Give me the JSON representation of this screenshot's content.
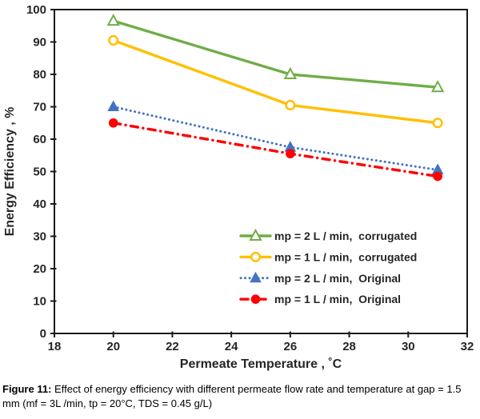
{
  "figure": {
    "caption_label": "Figure 11:",
    "caption_text": " Effect of energy efficiency with different permeate flow rate and temperature at gap = 1.5 mm (mf = 3L /min, tp = 20°C, TDS = 0.45 g/L)"
  },
  "chart_data": {
    "type": "line",
    "title": "",
    "xlabel": "Permeate Temperature , ˚C",
    "ylabel": "Energy Efficiency , %",
    "xlim": [
      18,
      32
    ],
    "ylim": [
      0,
      100
    ],
    "xticks": [
      18,
      20,
      22,
      24,
      26,
      28,
      30,
      32
    ],
    "yticks": [
      0,
      10,
      20,
      30,
      40,
      50,
      60,
      70,
      80,
      90,
      100
    ],
    "grid": false,
    "legend_position": "inside lower right",
    "x": [
      20,
      26,
      31
    ],
    "series": [
      {
        "name": "mp = 2 L / min,  corrugated",
        "values": [
          96.5,
          80,
          76
        ],
        "color": "#70AD47",
        "line_style": "solid",
        "marker": "triangle-open"
      },
      {
        "name": "mp = 1 L / min,  corrugated",
        "values": [
          90.5,
          70.5,
          65
        ],
        "color": "#FFC000",
        "line_style": "solid",
        "marker": "circle-open"
      },
      {
        "name": "mp = 2 L / min,  Original",
        "values": [
          70,
          57.5,
          50.5
        ],
        "color": "#4472C4",
        "line_style": "dotted",
        "marker": "triangle-filled"
      },
      {
        "name": "mp = 1 L / min,  Original",
        "values": [
          65,
          55.5,
          48.5
        ],
        "color": "#FF0000",
        "line_style": "dashdot",
        "marker": "circle-filled"
      }
    ],
    "axis_color": "#1a1a1a",
    "text_color": "#262626"
  }
}
